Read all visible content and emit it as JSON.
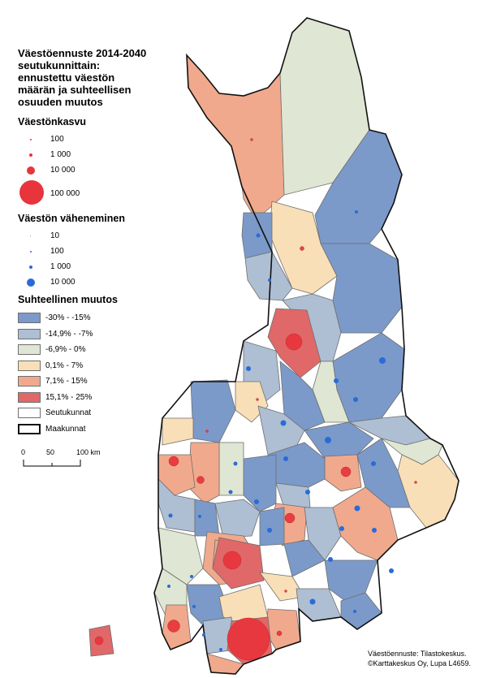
{
  "title_lines": [
    "Väestöennuste 2014-2040",
    "seutukunnittain:",
    "ennustettu väestön",
    "määrän ja suhteellisen",
    "osuuden muutos"
  ],
  "growth_legend": {
    "title": "Väestönkasvu",
    "items": [
      "100",
      "1 000",
      "10 000",
      "100 000"
    ]
  },
  "decline_legend": {
    "title": "Väestön väheneminen",
    "items": [
      "10",
      "100",
      "1 000",
      "10 000"
    ]
  },
  "change_legend": {
    "title": "Suhteellinen muutos",
    "classes": [
      {
        "label": "-30% - -15%",
        "color": "#7b9ac9"
      },
      {
        "label": "-14,9% - -7%",
        "color": "#aebed3"
      },
      {
        "label": "-6,9% - 0%",
        "color": "#dfe6d3"
      },
      {
        "label": "0,1% - 7%",
        "color": "#f8dfb8"
      },
      {
        "label": "7,1% - 15%",
        "color": "#f0a98c"
      },
      {
        "label": "15,1% - 25%",
        "color": "#e06868"
      }
    ],
    "boundaries": [
      "Seutukunnat",
      "Maakunnat"
    ]
  },
  "scale": {
    "ticks": [
      "0",
      "50",
      "100 km"
    ]
  },
  "source_lines": [
    "Väestöennuste: Tilastokeskus.",
    "©Karttakeskus Oy, Lupa L4659."
  ],
  "colors": {
    "growth_symbol": "#e8343c",
    "decline_symbol": "#2a6bd6",
    "boundary": "#6f6f6f",
    "province": "#111111"
  }
}
